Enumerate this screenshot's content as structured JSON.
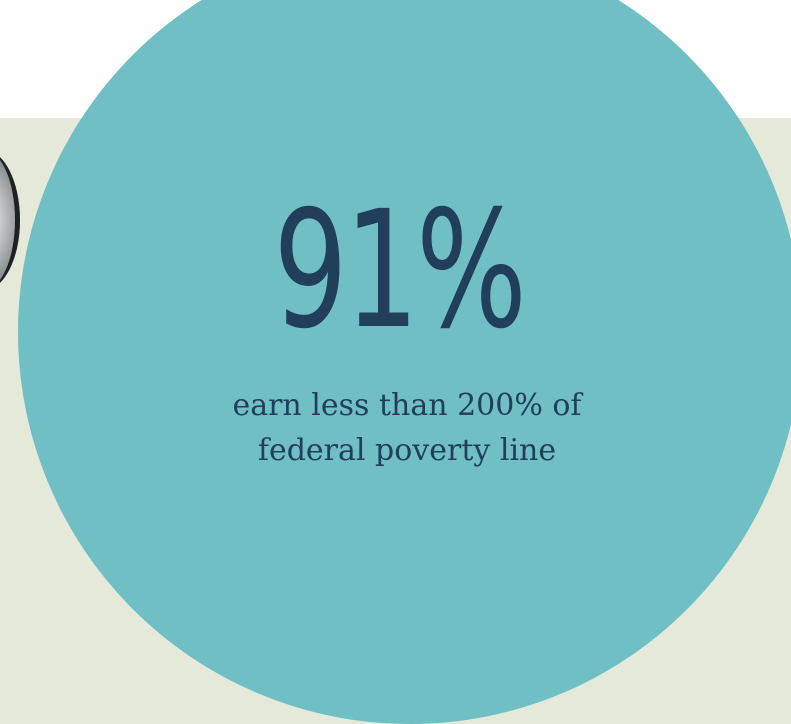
{
  "stat": {
    "value": "91%",
    "caption_line1": "earn less than 200% of",
    "caption_line2": "federal poverty line"
  },
  "colors": {
    "circle": "#6fbfc4",
    "panel": "#e4e9d9",
    "text": "#213f5a"
  }
}
